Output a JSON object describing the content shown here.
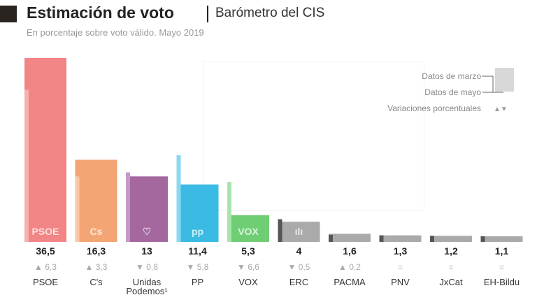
{
  "header": {
    "title": "Estimación de voto",
    "source": "Barómetro del CIS",
    "subtitle": "En porcentaje sobre voto válido. Mayo 2019"
  },
  "legend": {
    "march": "Datos de marzo",
    "may": "Datos de mayo",
    "variation": "Variaciones porcentuales"
  },
  "chart_data": {
    "type": "bar",
    "title": "Estimación de voto",
    "categories": [
      "PSOE",
      "C's",
      "Unidas Podemos¹",
      "PP",
      "VOX",
      "ERC",
      "PACMA",
      "PNV",
      "JxCat",
      "EH-Bildu"
    ],
    "value_labels": [
      "36,5",
      "16,3",
      "13",
      "11,4",
      "5,3",
      "4",
      "1,6",
      "1,3",
      "1,2",
      "1,1"
    ],
    "variation_labels": [
      "6,3",
      "3,3",
      "0,8",
      "5,8",
      "6,6",
      "0,5",
      "0,2",
      "=",
      "=",
      "="
    ],
    "variation_dir": [
      "up",
      "up",
      "down",
      "down",
      "down",
      "down",
      "up",
      "none",
      "none",
      "none"
    ],
    "series": [
      {
        "name": "Datos de mayo",
        "values": [
          36.5,
          16.3,
          13,
          11.4,
          5.3,
          4,
          1.6,
          1.3,
          1.2,
          1.1
        ]
      },
      {
        "name": "Datos de marzo",
        "values": [
          30.2,
          13,
          13.8,
          17.2,
          11.9,
          4.5,
          1.4,
          1.3,
          1.2,
          1.1
        ]
      }
    ],
    "colors": [
      "#f28585",
      "#f4a574",
      "#a4679e",
      "#3bbbe3",
      "#6fcd74",
      "#aaaaaa",
      "#aaaaaa",
      "#aaaaaa",
      "#aaaaaa",
      "#aaaaaa"
    ],
    "march_colors": [
      "#f7b0b0",
      "#f8c8a8",
      "#c69ac2",
      "#8ad8f0",
      "#a8e4ab",
      "#555555",
      "#555555",
      "#555555",
      "#555555",
      "#555555"
    ],
    "logos": [
      "PSOE",
      "Cs",
      "♡",
      "pp",
      "VOX",
      "ılı",
      "",
      "",
      "",
      ""
    ],
    "ylim": [
      0,
      37
    ]
  }
}
